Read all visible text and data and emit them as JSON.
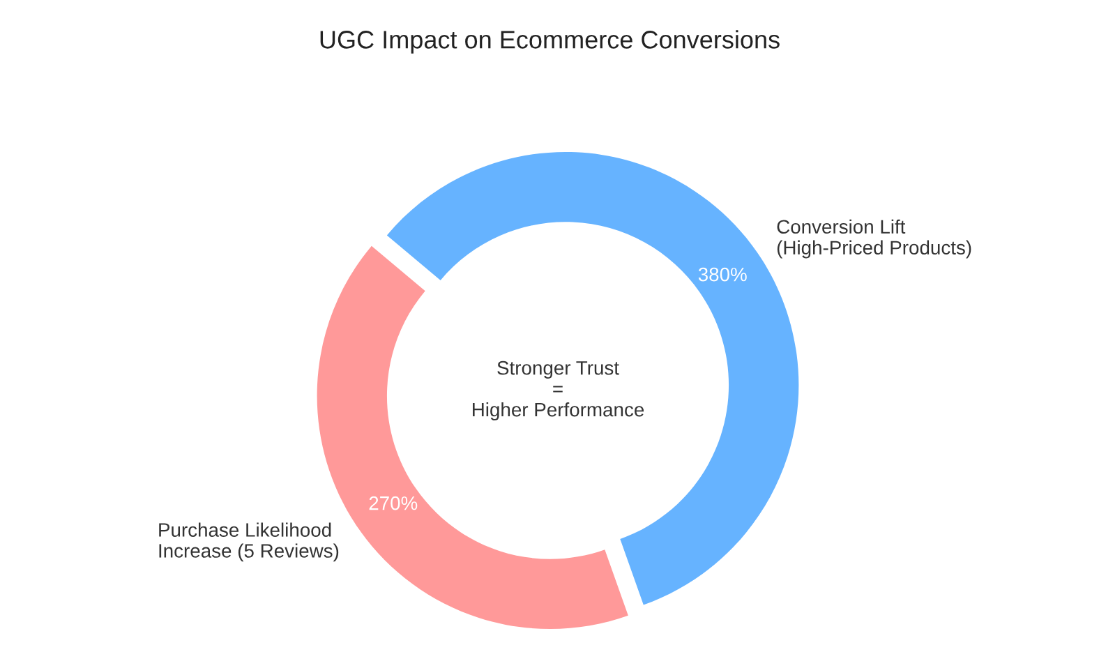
{
  "chart_data": {
    "type": "donut",
    "title": "UGC Impact on Ecommerce Conversions",
    "categories": [
      "Conversion Lift\n(High-Priced Products)",
      "Purchase Likelihood\nIncrease (5 Reviews)"
    ],
    "values": [
      380,
      270
    ],
    "value_labels": [
      "380%",
      "270%"
    ],
    "colors": [
      "#66b3ff",
      "#ff9999"
    ],
    "annotations": [
      "Stronger Trust\n=\nHigher Performance"
    ],
    "legend": false
  }
}
